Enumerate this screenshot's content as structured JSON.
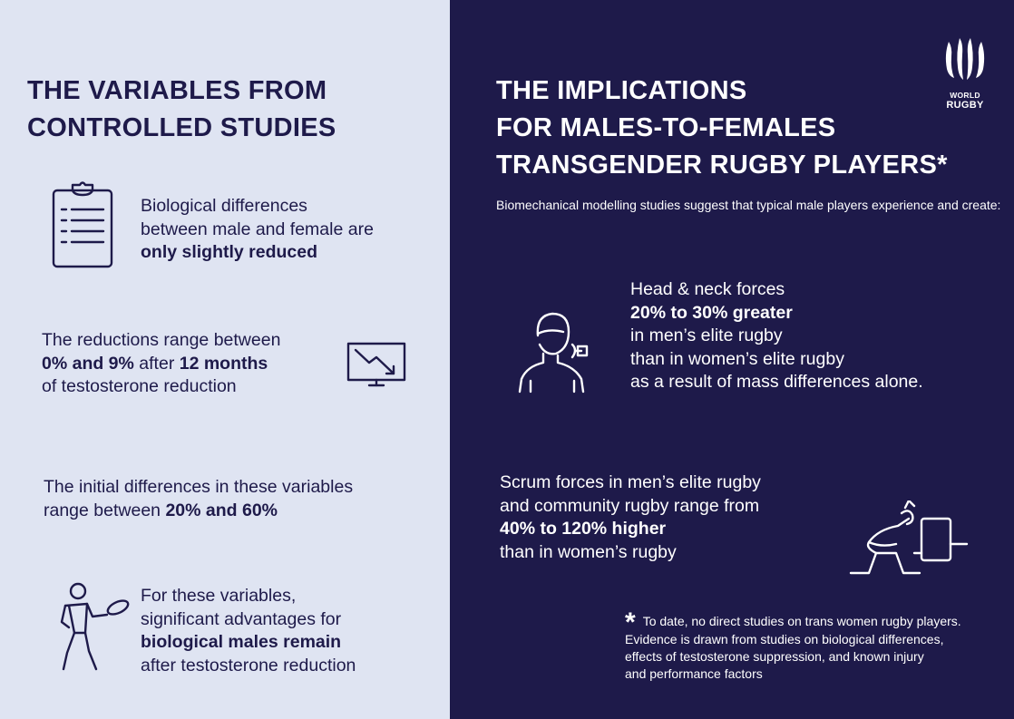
{
  "left": {
    "heading": [
      "THE VARIABLES FROM",
      "CONTROLLED STUDIES"
    ],
    "block1": {
      "line1": "Biological differences",
      "line2": "between male and female are",
      "line3_bold": "only slightly reduced"
    },
    "block2": {
      "line1": "The reductions range between",
      "line2_bold1": "0% and 9%",
      "line2_mid": " after ",
      "line2_bold2": "12 months",
      "line3": "of testosterone reduction"
    },
    "block3": {
      "line1": "The initial differences in these variables",
      "line2_prefix": "range between ",
      "line2_bold": "20% and 60%"
    },
    "block4": {
      "line1": "For these variables,",
      "line2": "significant advantages for",
      "line3_bold": "biological males remain",
      "line4": "after testosterone reduction"
    }
  },
  "right": {
    "heading": [
      "THE IMPLICATIONS",
      "FOR MALES-TO-FEMALES",
      "TRANSGENDER RUGBY PLAYERS*"
    ],
    "intro": "Biomechanical modelling studies suggest that typical male players experience and create:",
    "block1": {
      "line1": "Head & neck forces",
      "line2_bold": "20% to 30% greater",
      "line3": "in men’s elite rugby",
      "line4": "than in women’s elite rugby",
      "line5": "as a result of mass differences alone."
    },
    "block2": {
      "line1": "Scrum forces in men’s elite rugby",
      "line2": "and community rugby range from",
      "line3_bold": "40% to 120% higher",
      "line4": "than in women’s rugby"
    },
    "footnote": {
      "asterisk": "*",
      "line1": "To date, no direct studies on trans women rugby players.",
      "line2": "Evidence is drawn from studies on biological differences,",
      "line3": "effects of testosterone suppression, and known injury",
      "line4": "and performance factors"
    },
    "logo": {
      "line1": "WORLD",
      "line2": "RUGBY"
    }
  },
  "icons": {
    "clipboard": "clipboard-icon",
    "chart_down": "declining-chart-icon",
    "rugby_player": "rugby-player-icon",
    "head_impact": "head-neck-impact-icon",
    "scrum": "scrum-machine-icon",
    "logo": "world-rugby-logo"
  },
  "colors": {
    "left_bg": "#dfe4f2",
    "right_bg": "#1e1a4a",
    "text_dark": "#1e1a4a",
    "text_light": "#ffffff"
  }
}
